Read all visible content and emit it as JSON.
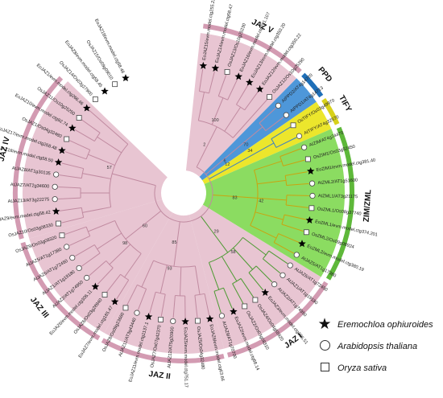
{
  "groups": [
    {
      "name": "JAZ V",
      "color": "#e8c5d2",
      "ring": "#d39bb2",
      "start": -0.5,
      "end": 6.5
    },
    {
      "name": "PPD",
      "color": "#4e97d9",
      "ring": "#1f6fb8",
      "start": 6.5,
      "end": 8.5
    },
    {
      "name": "TIFY",
      "color": "#ece62c",
      "ring": "#d8d11a",
      "start": 8.5,
      "end": 10.5
    },
    {
      "name": "ZIM/ZML",
      "color": "#8bdc61",
      "ring": "#5eb83a",
      "start": 10.5,
      "end": 20.5
    },
    {
      "name": "JAZ I",
      "color": "#e8c5d2",
      "ring": "#d39bb2",
      "start": 20.5,
      "end": 28.5
    },
    {
      "name": "JAZ II",
      "color": "#e8c5d2",
      "ring": "#d39bb2",
      "start": 28.5,
      "end": 36.5
    },
    {
      "name": "JAZ III",
      "color": "#e8c5d2",
      "ring": "#d39bb2",
      "start": 36.5,
      "end": 44.5
    },
    {
      "name": "JAZ IV",
      "color": "#e8c5d2",
      "ring": "#d39bb2",
      "start": 44.5,
      "end": 55.5
    }
  ],
  "leaves": [
    {
      "label": "EoJAZ15/evm.model.ctg255.22",
      "species": "star"
    },
    {
      "label": "EoJAZ14/evm.model.ctg58.47",
      "species": "star"
    },
    {
      "label": "OsJAZ13/Os10g25230",
      "species": "square"
    },
    {
      "label": "EoJAZ16/evm.model.ctg291.107",
      "species": "star"
    },
    {
      "label": "EoJAZ13/evm.model.ctg350.20",
      "species": "star"
    },
    {
      "label": "EoJAZ12/evm.model.ctg350.22",
      "species": "star"
    },
    {
      "label": "OsJAZ12/Os10g25290",
      "species": "square"
    },
    {
      "label": "AtPPD2/AT4g14720",
      "species": "circle"
    },
    {
      "label": "AtPPD1/AT4g14713",
      "species": "circle"
    },
    {
      "label": "OsTIFY/Os03g49970",
      "species": "square"
    },
    {
      "label": "AtTIFY/AT4g32570",
      "species": "circle"
    },
    {
      "label": "AtZIM/AT4g24470",
      "species": "circle"
    },
    {
      "label": "OsZIM1/Os03g52450",
      "species": "square"
    },
    {
      "label": "EoZIM1/evm.model.ctg381.40",
      "species": "star"
    },
    {
      "label": "AtZML2/AT1g51600",
      "species": "circle"
    },
    {
      "label": "AtZML1/AT3g21175",
      "species": "circle"
    },
    {
      "label": "OsZML1/Os08g37740",
      "species": "square"
    },
    {
      "label": "EoZML1/evm.model.ctg374.201",
      "species": "star"
    },
    {
      "label": "OsZML2/Os09g08924",
      "species": "square"
    },
    {
      "label": "EoZML2/evm.model.ctg380.19",
      "species": "star"
    },
    {
      "label": "AtJAZ5/AT1g17380",
      "species": "circle"
    },
    {
      "label": "AtJAZ6/AT1g72450",
      "species": "circle"
    },
    {
      "label": "AtJAZ1/AT1g19180",
      "species": "circle"
    },
    {
      "label": "AtJAZ2/AT1g74950",
      "species": "circle"
    },
    {
      "label": "EoJAZ3/evm.model.ctg306.51",
      "species": "star"
    },
    {
      "label": "OsJAZ4/Os04g55920",
      "species": "square"
    },
    {
      "label": "OsJAZ2/Os03g08310",
      "species": "square"
    },
    {
      "label": "EoJAZ2/evm.model.ctg68.14",
      "species": "star"
    },
    {
      "label": "AtJAZ9/AT1g70700",
      "species": "circle"
    },
    {
      "label": "EoJAZ6/evm.model.ctg63.66",
      "species": "star"
    },
    {
      "label": "OsJAZ5/Os04g32480",
      "species": "square"
    },
    {
      "label": "EoJAZ5/evm.model.ctg751.17",
      "species": "star"
    },
    {
      "label": "AtJAZ12/AT5g20900",
      "species": "circle"
    },
    {
      "label": "OsJAZ7/Os07g42370",
      "species": "square"
    },
    {
      "label": "EoJAZ11/evm.model.ctg1137.1",
      "species": "star"
    },
    {
      "label": "AtJAZ11/AT3g43440",
      "species": "circle"
    },
    {
      "label": "OsJAZ8/Os09g23660",
      "species": "square"
    },
    {
      "label": "EoJAZ7/evm.model.ctg185.47",
      "species": "star"
    },
    {
      "label": "OsJAZ6/Os03g28940",
      "species": "square"
    },
    {
      "label": "EoJAZ6/evm.model.ctg306.11",
      "species": "star"
    },
    {
      "label": "AtJAZ2/AT1g74950",
      "species": "circle"
    },
    {
      "label": "AtJAZ1/AT1g19180",
      "species": "circle"
    },
    {
      "label": "AtJAZ6/AT1g72450",
      "species": "circle"
    },
    {
      "label": "AtJAZ5/AT1g17380",
      "species": "circle"
    },
    {
      "label": "OsJAZ9/Os03g08320",
      "species": "square"
    },
    {
      "label": "OsJAZ10/Os03g08330",
      "species": "square"
    },
    {
      "label": "EoJAZ9/evm.model.ctg58.42",
      "species": "star"
    },
    {
      "label": "AtJAZ13/AT3g22275",
      "species": "circle"
    },
    {
      "label": "AtJAZ7/AT2g34600",
      "species": "circle"
    },
    {
      "label": "AtJAZ8/AT1g30135",
      "species": "circle"
    },
    {
      "label": "EoJAZ18/evm.model.ctg58.50",
      "species": "star"
    },
    {
      "label": "EoJAZ17/evm.model.ctg268.48",
      "species": "star"
    },
    {
      "label": "OsJAZ1/Os04g32480",
      "species": "square"
    },
    {
      "label": "EoJAZ10/evm.model.ctg92.74",
      "species": "star"
    },
    {
      "label": "OsJAZ11/Os10g25250",
      "species": "square"
    },
    {
      "label": "EoJAZ1/evm.model.ctg266.46",
      "species": "star"
    },
    {
      "label": "OsJAZ14/Os03g27900",
      "species": "square"
    },
    {
      "label": "EoJAZ8/evm.model.ctg58.45",
      "species": "star"
    },
    {
      "label": "OsJAZ15/Os09g09010",
      "species": "square"
    },
    {
      "label": "EoJAZ19/evm.model.ctg58.48",
      "species": "star"
    }
  ],
  "support_values": [
    "100",
    "70",
    "34",
    "42",
    "58",
    "93",
    "98",
    "57",
    "2",
    "6",
    "12",
    "83",
    "29",
    "85",
    "60"
  ],
  "legend": [
    {
      "symbol": "star",
      "label": "Eremochloa ophiuroides"
    },
    {
      "symbol": "circle",
      "label": "Arabidopsis thaliana"
    },
    {
      "symbol": "square",
      "label": "Oryza sativa"
    }
  ],
  "colors": {
    "branch": "#c08aa0",
    "branch_blue": "#3b7fc4",
    "branch_yellow": "#c9a40f",
    "branch_green": "#4c9a32",
    "label": "#222222"
  }
}
